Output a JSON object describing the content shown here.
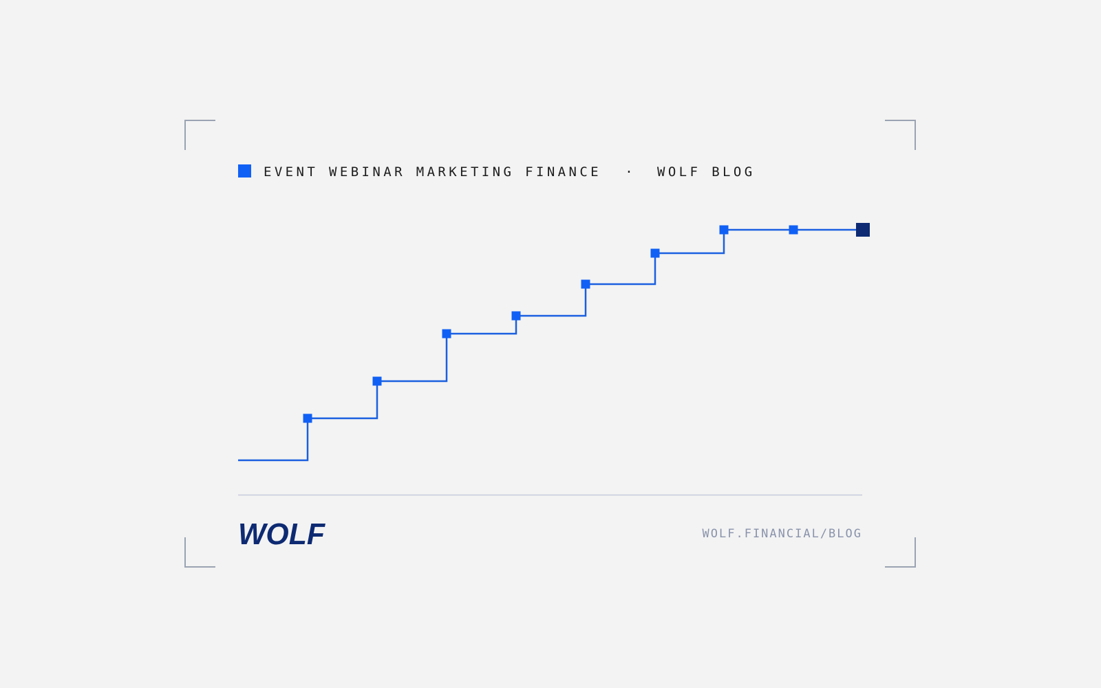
{
  "header": {
    "tags": "EVENT WEBINAR MARKETING FINANCE",
    "separator": "·",
    "blog": "WOLF BLOG"
  },
  "footer": {
    "logo": "WOLF",
    "url": "WOLF.FINANCIAL/BLOG"
  }
}
